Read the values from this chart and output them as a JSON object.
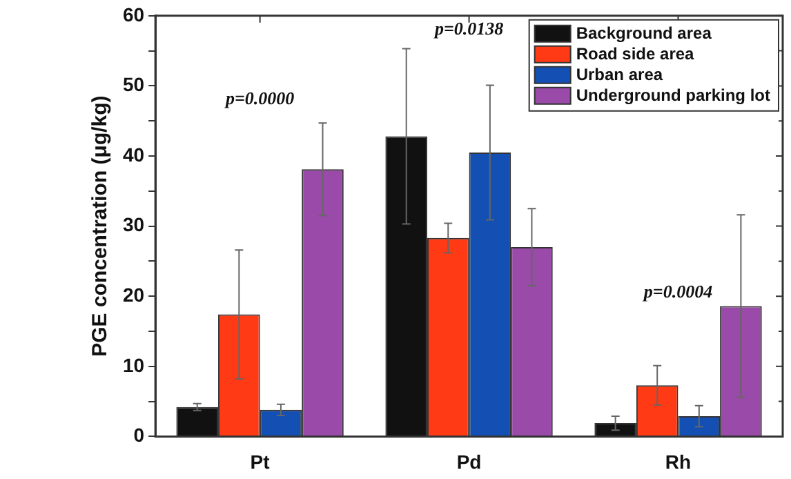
{
  "chart_data": {
    "type": "bar",
    "ylabel": "PGE concentration (μg/kg)",
    "categories": [
      "Pt",
      "Pd",
      "Rh"
    ],
    "series": [
      {
        "name": "Background area",
        "color": "#111111",
        "values": [
          4.2,
          42.8,
          1.9
        ],
        "errors": [
          0.5,
          12.5,
          1.0
        ]
      },
      {
        "name": "Road side area",
        "color": "#ff3a14",
        "values": [
          17.4,
          28.3,
          7.3
        ],
        "errors": [
          9.2,
          2.1,
          2.8
        ]
      },
      {
        "name": "Urban area",
        "color": "#1450b4",
        "values": [
          3.8,
          40.5,
          2.9
        ],
        "errors": [
          0.8,
          9.6,
          1.5
        ]
      },
      {
        "name": "Underground parking lot",
        "color": "#9a4aa8",
        "values": [
          38.1,
          27.0,
          18.6
        ],
        "errors": [
          6.6,
          5.5,
          13.0
        ]
      }
    ],
    "ylim": [
      0,
      60
    ],
    "yticks": [
      0,
      {
        "value": 5,
        "label": null
      },
      10,
      {
        "value": 15,
        "label": null
      },
      20,
      {
        "value": 25,
        "label": null
      },
      30,
      {
        "value": 35,
        "label": null
      },
      40,
      {
        "value": 45,
        "label": null
      },
      50,
      {
        "value": 55,
        "label": null
      },
      60
    ],
    "annotations": [
      "p=0.0000",
      "p=0.0138",
      "p=0.0004"
    ],
    "legend": "top right",
    "grid": false
  }
}
